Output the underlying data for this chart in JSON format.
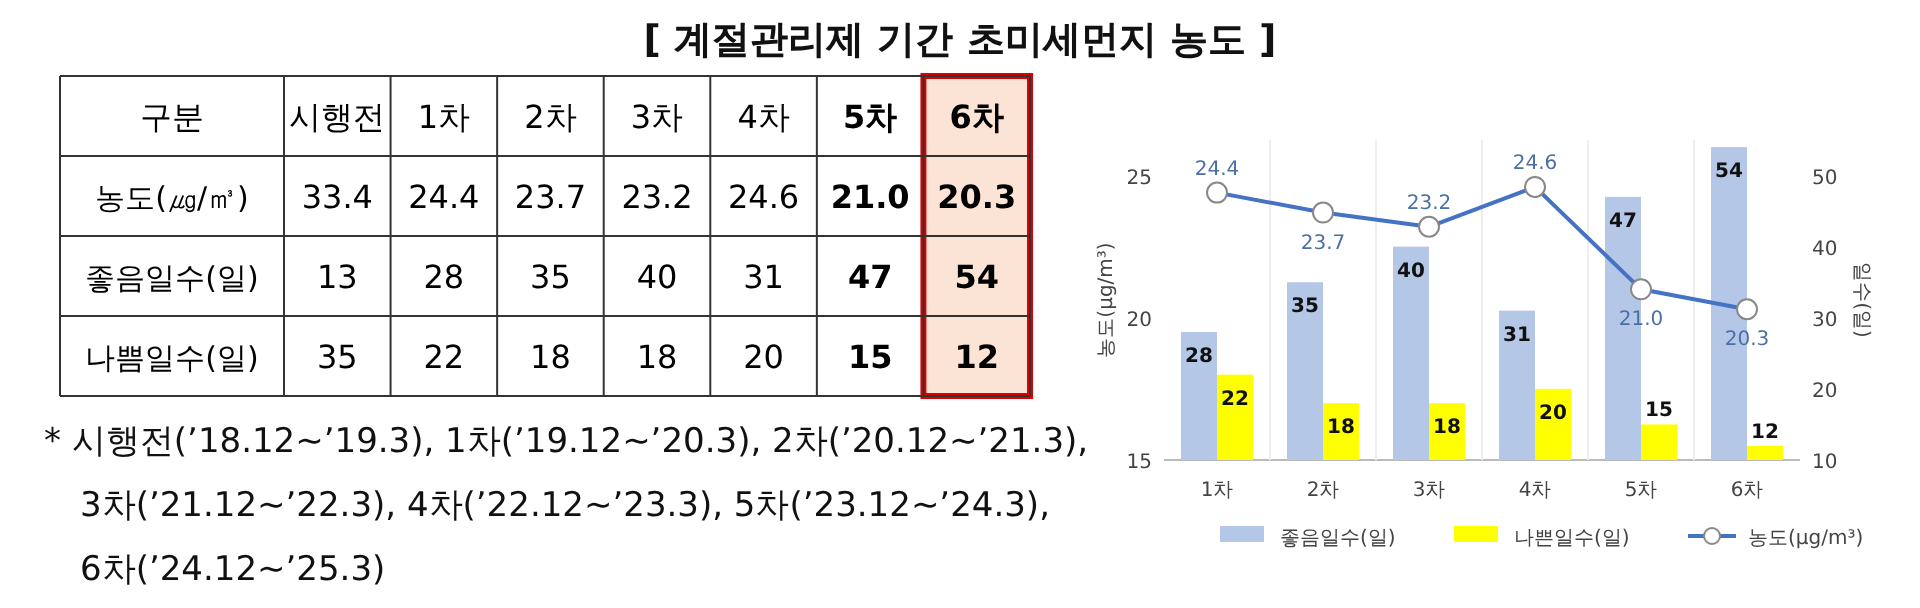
{
  "chart_data": [
    {
      "type": "heatmap",
      "title": "[ 계절관리제 기간 초미세먼지 농도 ]",
      "categories": [
        "시행전",
        "1차",
        "2차",
        "3차",
        "4차",
        "5차",
        "6차"
      ],
      "y_categories": [
        "농도(㎍/㎥)",
        "좋음일수(일)",
        "나쁨일수(일)"
      ],
      "cells": [
        [
          33.4,
          24.4,
          23.7,
          23.2,
          24.6,
          21.0,
          20.3
        ],
        [
          13,
          28,
          35,
          40,
          31,
          47,
          54
        ],
        [
          35,
          22,
          18,
          18,
          20,
          15,
          12
        ]
      ],
      "cell_labels": [
        [
          "33.4",
          "24.4",
          "23.7",
          "23.2",
          "24.6",
          "21.0",
          "20.3"
        ],
        [
          "13",
          "28",
          "35",
          "40",
          "31",
          "47",
          "54"
        ],
        [
          "35",
          "22",
          "18",
          "18",
          "20",
          "15",
          "12"
        ]
      ],
      "annotations": [
        "구분",
        "* 시행전(’18.12~’19.3),  1차(’19.12~’20.3),  2차(’20.12~’21.3),",
        "3차(’21.12~’22.3),  4차(’22.12~’23.3),  5차(’23.12~’24.3),",
        "6차(’24.12~’25.3)"
      ]
    },
    {
      "type": "bar",
      "categories": [
        "1차",
        "2차",
        "3차",
        "4차",
        "5차",
        "6차"
      ],
      "series": [
        {
          "name": "좋음일수(일)",
          "color": "#b4c7e7",
          "axis": "y2",
          "values": [
            28,
            35,
            40,
            31,
            47,
            54
          ],
          "value_labels": [
            "28",
            "35",
            "40",
            "31",
            "47",
            "54"
          ]
        },
        {
          "name": "나쁜일수(일)",
          "color": "#ffff00",
          "axis": "y2",
          "values": [
            22,
            18,
            18,
            20,
            15,
            12
          ],
          "value_labels": [
            "22",
            "18",
            "18",
            "20",
            "15",
            "12"
          ]
        },
        {
          "name": "농도(μg/m³)",
          "type": "line",
          "color": "#4472c4",
          "marker": "circle",
          "values": [
            24.4,
            23.7,
            23.2,
            24.6,
            21.0,
            20.3
          ],
          "value_labels": [
            "24.4",
            "23.7",
            "23.2",
            "24.6",
            "21.0",
            "20.3"
          ]
        }
      ],
      "ylabel": "농도(μg/m³)",
      "y2label": "일수(일)",
      "ylim": [
        15,
        26.25
      ],
      "yticks": [
        15,
        20,
        25
      ],
      "y2lim": [
        10,
        55
      ],
      "y2ticks": [
        10,
        20,
        30,
        40,
        50
      ],
      "legend": "bottom"
    }
  ]
}
